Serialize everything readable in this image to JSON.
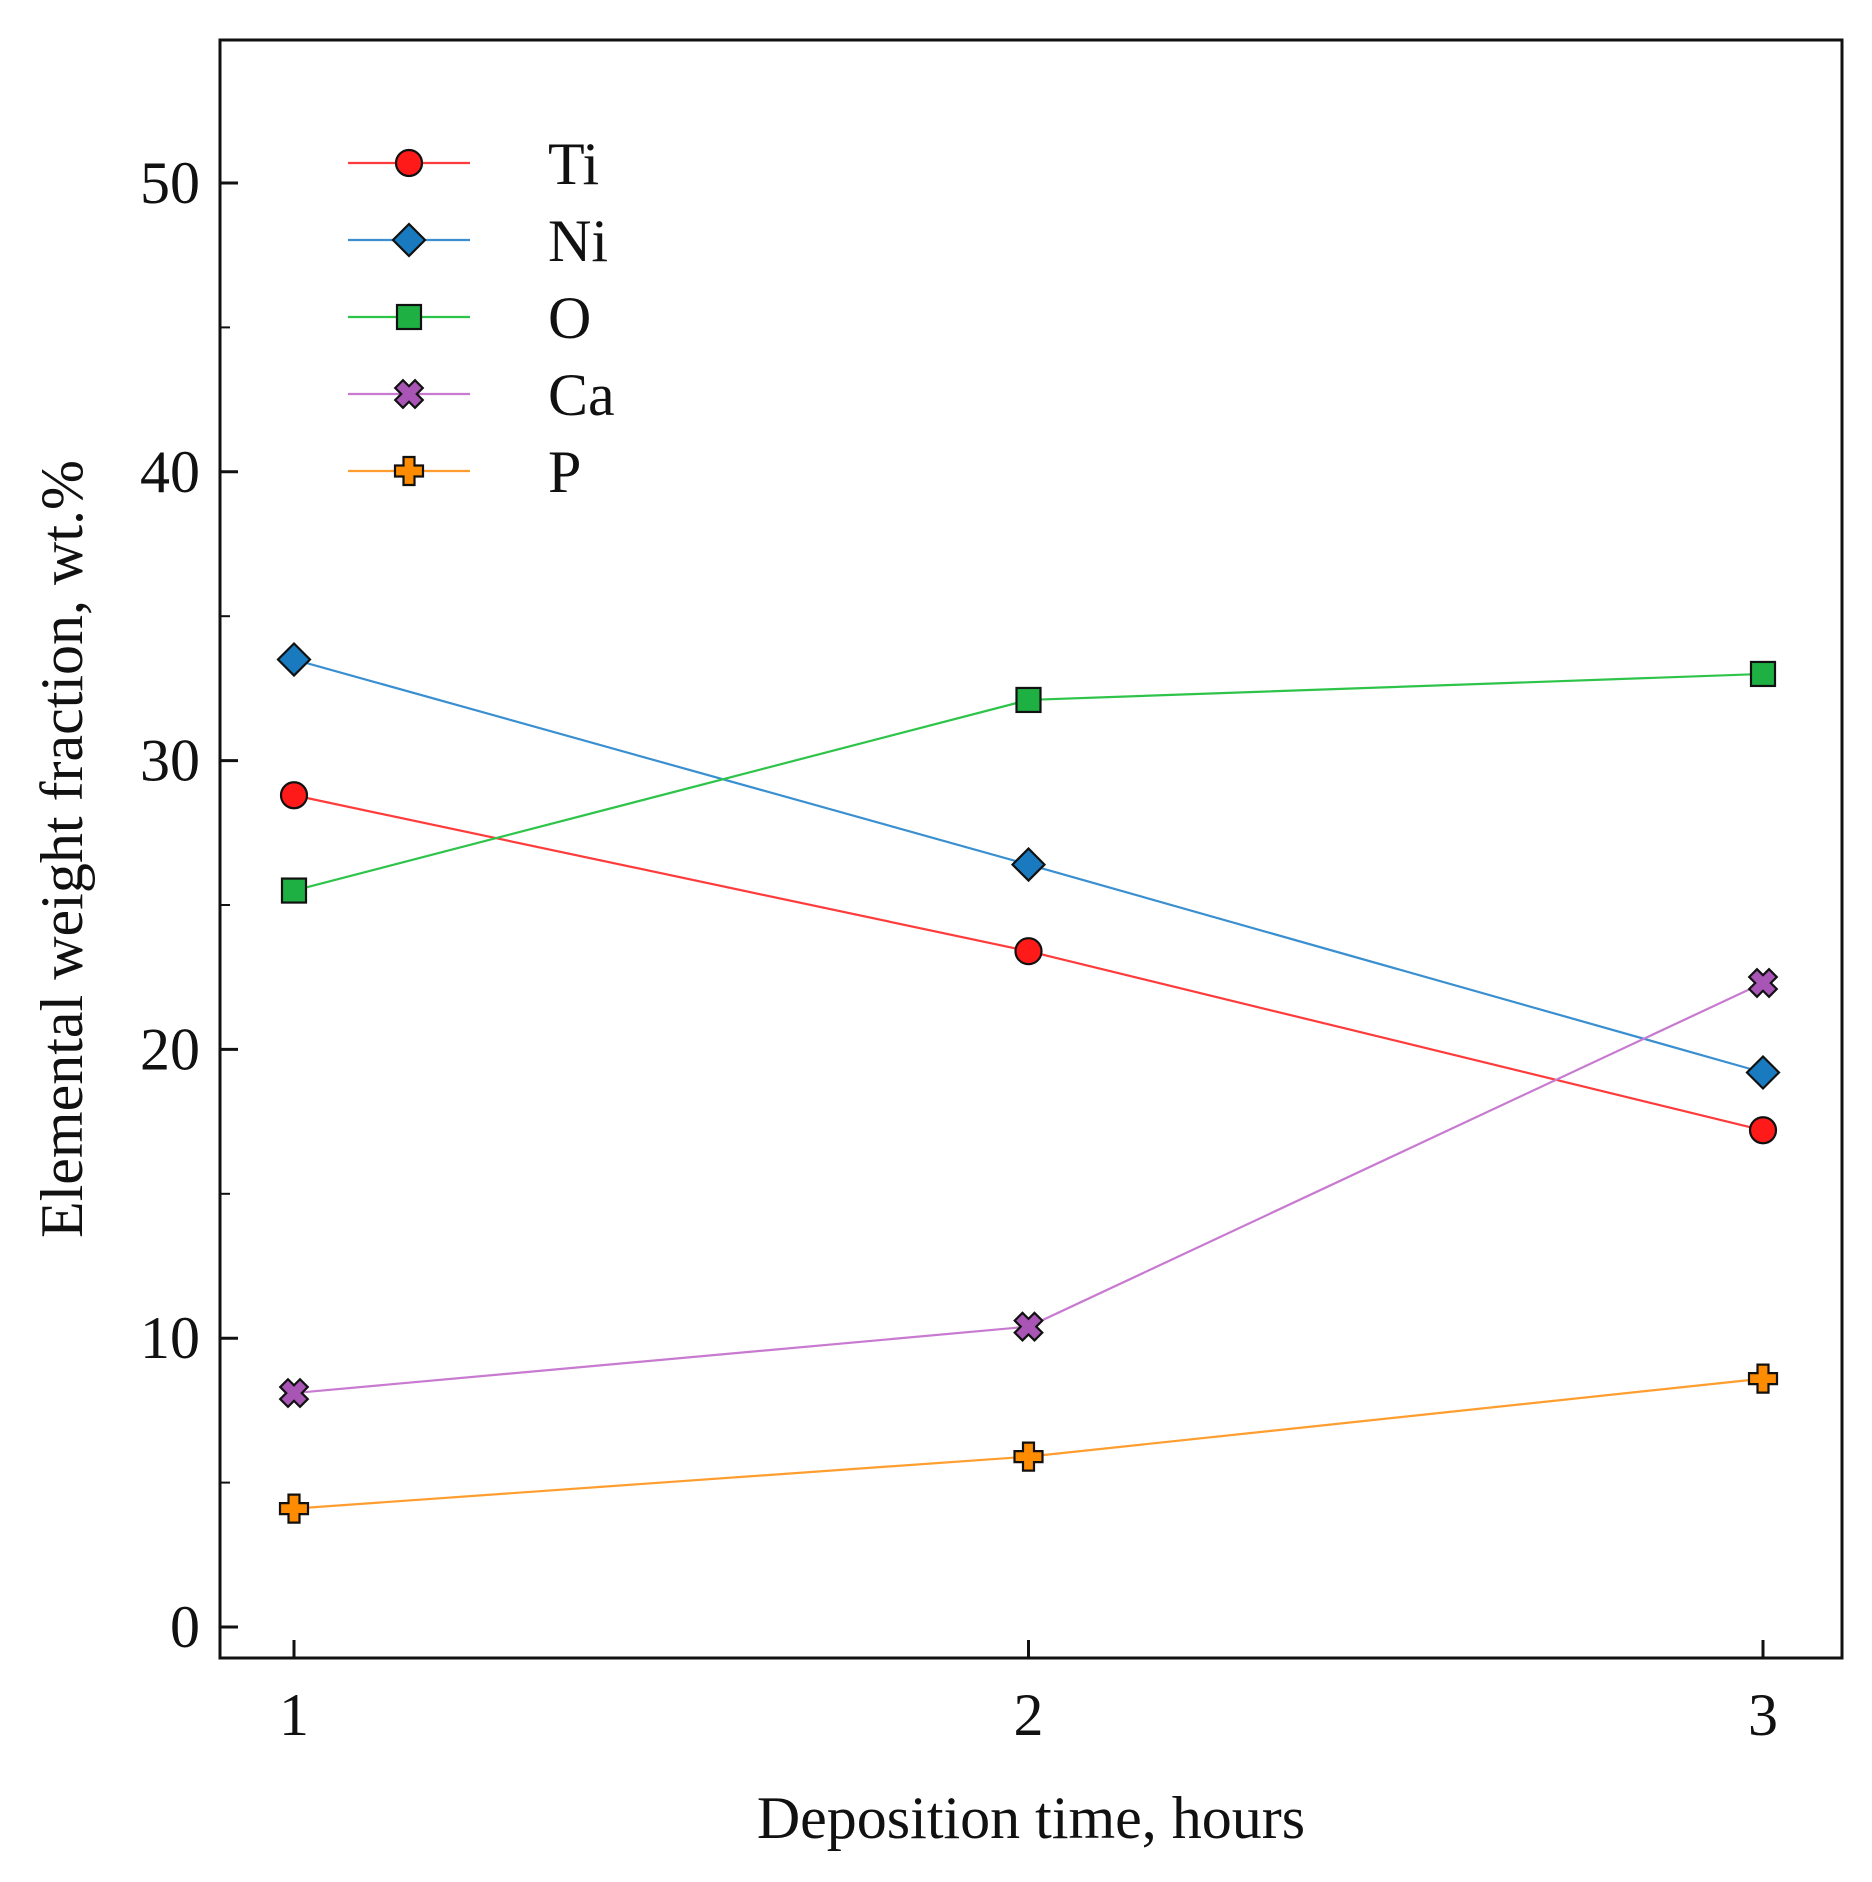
{
  "chart_data": {
    "type": "line",
    "title": "",
    "xlabel": "Deposition time, hours",
    "ylabel": "Elemental weight fraction, wt.%",
    "x": [
      1,
      2,
      3
    ],
    "x_ticks": [
      1,
      2,
      3
    ],
    "y_ticks": [
      0,
      10,
      20,
      30,
      40,
      50
    ],
    "xlim": [
      0.9,
      3.1
    ],
    "ylim": [
      -1,
      55
    ],
    "grid": false,
    "legend_position": "top-left",
    "series": [
      {
        "name": "Ti",
        "values": [
          28.8,
          23.4,
          17.2
        ],
        "color": "#ff3b3b",
        "marker": "circle",
        "marker_fill": "#ff1a1a"
      },
      {
        "name": "Ni",
        "values": [
          33.5,
          26.4,
          19.2
        ],
        "color": "#3a8fd0",
        "marker": "diamond",
        "marker_fill": "#1a7abf"
      },
      {
        "name": "O",
        "values": [
          25.5,
          32.1,
          33.0
        ],
        "color": "#2ec44a",
        "marker": "square",
        "marker_fill": "#1fb043"
      },
      {
        "name": "Ca",
        "values": [
          8.1,
          10.4,
          22.3
        ],
        "color": "#c77ad0",
        "marker": "x",
        "marker_fill": "#a855b5"
      },
      {
        "name": "P",
        "values": [
          4.1,
          5.9,
          8.6
        ],
        "color": "#ff9d2e",
        "marker": "plus",
        "marker_fill": "#ff8c00"
      }
    ]
  }
}
